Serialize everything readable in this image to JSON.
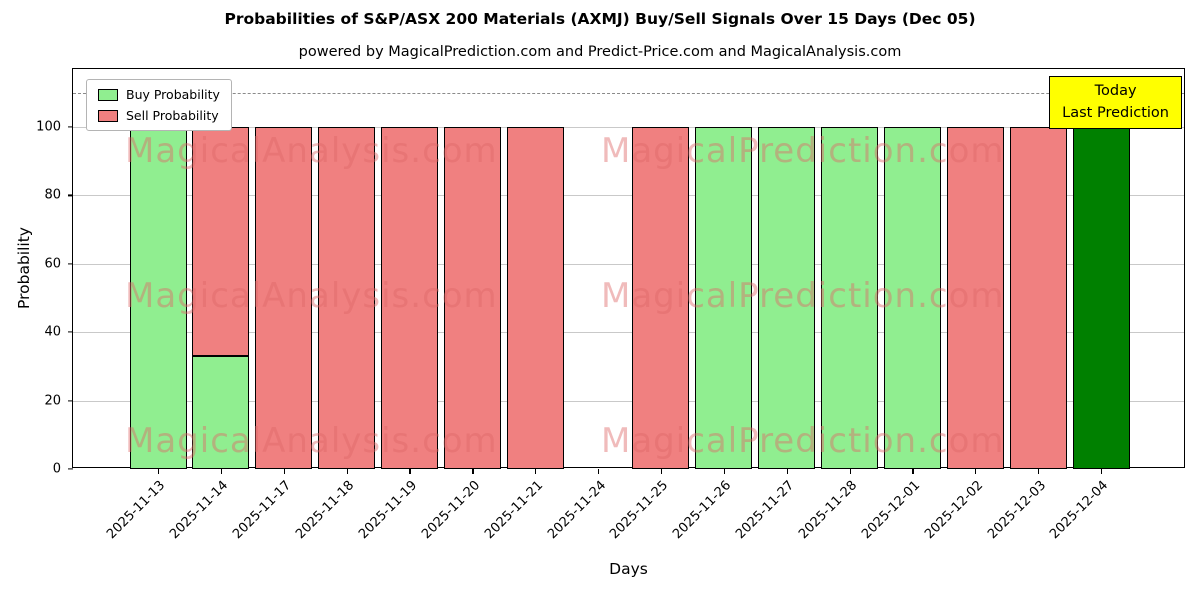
{
  "title": "Probabilities of S&P/ASX 200 Materials (AXMJ) Buy/Sell Signals Over 15 Days (Dec 05)",
  "subtitle": "powered by MagicalPrediction.com and Predict-Price.com and MagicalAnalysis.com",
  "legend": {
    "buy": "Buy Probability",
    "sell": "Sell Probability"
  },
  "today_label": {
    "line1": "Today",
    "line2": "Last Prediction"
  },
  "watermarks": {
    "left": "MagicalAnalysis.com",
    "right": "MagicalPrediction.com"
  },
  "axes": {
    "xlabel": "Days",
    "ylabel": "Probability",
    "yticks": [
      0,
      20,
      40,
      60,
      80,
      100
    ],
    "ymax": 117,
    "reference_line": 110
  },
  "colors": {
    "buy": "#90EE90",
    "sell": "#F08080",
    "today": "#008000",
    "grid": "#c9c9c9",
    "dashed": "#8a8a8a",
    "today_box_bg": "#ffff00",
    "watermark": "rgba(222, 104, 104, 0.45)"
  },
  "chart_data": {
    "type": "bar",
    "stacked": true,
    "title": "Probabilities of S&P/ASX 200 Materials (AXMJ) Buy/Sell Signals Over 15 Days (Dec 05)",
    "xlabel": "Days",
    "ylabel": "Probability",
    "ylim": [
      0,
      117
    ],
    "reference_line": 110,
    "legend_position": "upper-left",
    "grid": "horizontal",
    "categories": [
      "2025-11-13",
      "2025-11-14",
      "2025-11-17",
      "2025-11-18",
      "2025-11-19",
      "2025-11-20",
      "2025-11-21",
      "2025-11-24",
      "2025-11-25",
      "2025-11-26",
      "2025-11-27",
      "2025-11-28",
      "2025-12-01",
      "2025-12-02",
      "2025-12-03",
      "2025-12-04"
    ],
    "series": [
      {
        "name": "Buy Probability",
        "color": "#90EE90",
        "values": [
          100,
          33,
          0,
          0,
          0,
          0,
          0,
          0,
          0,
          100,
          100,
          100,
          100,
          0,
          0,
          100
        ]
      },
      {
        "name": "Sell Probability",
        "color": "#F08080",
        "values": [
          0,
          67,
          100,
          100,
          100,
          100,
          100,
          0,
          100,
          0,
          0,
          0,
          0,
          100,
          100,
          0
        ]
      }
    ],
    "today_index": 15,
    "today_color": "#008000"
  }
}
